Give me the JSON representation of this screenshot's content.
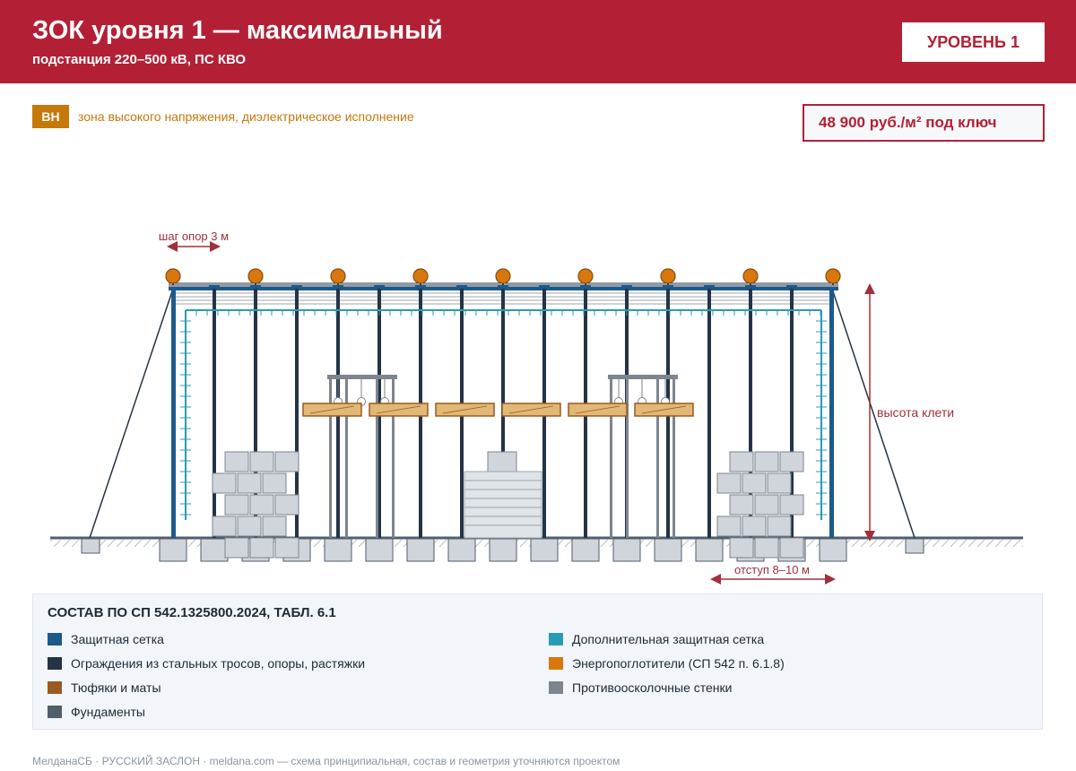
{
  "header": {
    "title": "ЗОК уровня 1 — максимальный",
    "subtitle": "подстанция 220–500 кВ, ПС КВО",
    "level_badge": "УРОВЕНЬ 1"
  },
  "zone": {
    "badge": "ВН",
    "text": "зона высокого напряжения, диэлектрическое исполнение"
  },
  "price": "48 900 руб./м² под ключ",
  "diagram": {
    "label_pitch": "шаг опор 3 м",
    "label_height": "высота клети",
    "label_setback": "отступ 8–10 м"
  },
  "legend": {
    "title": "СОСТАВ ПО СП 542.1325800.2024, ТАБЛ. 6.1",
    "items": [
      {
        "label": "Защитная сетка",
        "color": "#1c5a8c"
      },
      {
        "label": "Дополнительная защитная сетка",
        "color": "#2a9bb5"
      },
      {
        "label": "Ограждения из стальных тросов, опоры, растяжки",
        "color": "#243447"
      },
      {
        "label": "Энергопоглотители (СП 542 п. 6.1.8)",
        "color": "#d9770f"
      },
      {
        "label": "Тюфяки и маты",
        "color": "#9a5a22"
      },
      {
        "label": "Противоосколочные стенки",
        "color": "#7d858e"
      },
      {
        "label": "Фундаменты",
        "color": "#515e6c"
      }
    ]
  },
  "footer": "МелданаСБ · РУССКИЙ ЗАСЛОН · meldana.com — схема принципиальная, состав и геометрия уточняются проектом",
  "colors": {
    "brand": "#b32035",
    "accent_orange": "#c6780a",
    "net": "#1c5a8c",
    "extra_net": "#2a9bb5",
    "cable": "#243447",
    "absorber": "#d9770f",
    "mat": "#9a5a22",
    "wall": "#7d858e",
    "foundation": "#515e6c"
  }
}
